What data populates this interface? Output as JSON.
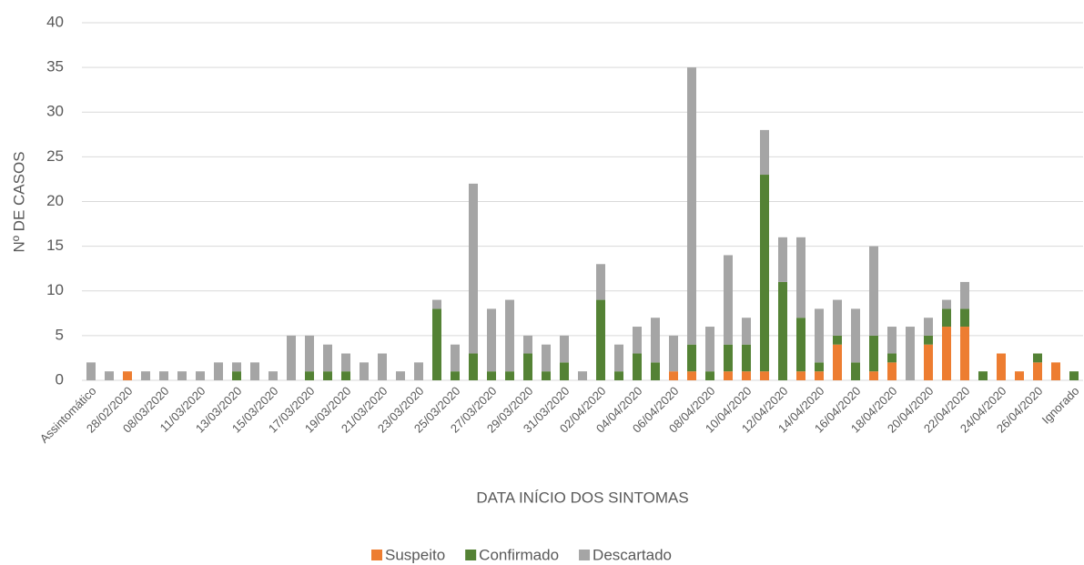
{
  "chart_data": {
    "type": "stacked_bar",
    "x_label": "DATA INÍCIO DOS SINTOMAS",
    "y_label": "Nº DE CASOS",
    "categories": [
      "Assintomático",
      null,
      "28/02/2020",
      null,
      "08/03/2020",
      null,
      "11/03/2020",
      null,
      "13/03/2020",
      null,
      "15/03/2020",
      null,
      "17/03/2020",
      null,
      "19/03/2020",
      null,
      "21/03/2020",
      null,
      "23/03/2020",
      null,
      "25/03/2020",
      null,
      "27/03/2020",
      null,
      "29/03/2020",
      null,
      "31/03/2020",
      null,
      "02/04/2020",
      null,
      "04/04/2020",
      null,
      "06/04/2020",
      null,
      "08/04/2020",
      null,
      "10/04/2020",
      null,
      "12/04/2020",
      null,
      "14/04/2020",
      null,
      "16/04/2020",
      null,
      "18/04/2020",
      null,
      "20/04/2020",
      null,
      "22/04/2020",
      null,
      "24/04/2020",
      null,
      "26/04/2020",
      null,
      "Ignorado"
    ],
    "series": [
      {
        "name": "Suspeito",
        "color": "#ed7d31",
        "values": [
          0,
          0,
          1,
          0,
          0,
          0,
          0,
          0,
          0,
          0,
          0,
          0,
          0,
          0,
          0,
          0,
          0,
          0,
          0,
          0,
          0,
          0,
          0,
          0,
          0,
          0,
          0,
          0,
          0,
          0,
          0,
          0,
          1,
          1,
          0,
          1,
          1,
          1,
          0,
          1,
          1,
          4,
          0,
          1,
          2,
          0,
          4,
          6,
          6,
          0,
          3,
          1,
          2,
          2,
          0
        ]
      },
      {
        "name": "Confirmado",
        "color": "#548235",
        "values": [
          0,
          0,
          0,
          0,
          0,
          0,
          0,
          0,
          1,
          0,
          0,
          0,
          1,
          1,
          1,
          0,
          0,
          0,
          0,
          8,
          1,
          3,
          1,
          1,
          3,
          1,
          2,
          0,
          9,
          1,
          3,
          2,
          0,
          3,
          1,
          3,
          3,
          22,
          11,
          6,
          1,
          1,
          2,
          4,
          1,
          0,
          1,
          2,
          2,
          1,
          0,
          0,
          1,
          0,
          1
        ]
      },
      {
        "name": "Descartado",
        "color": "#a5a5a5",
        "values": [
          2,
          1,
          0,
          1,
          1,
          1,
          1,
          2,
          1,
          2,
          1,
          5,
          4,
          3,
          2,
          2,
          3,
          1,
          2,
          1,
          3,
          19,
          7,
          8,
          2,
          3,
          3,
          1,
          4,
          3,
          3,
          5,
          4,
          31,
          5,
          10,
          3,
          5,
          5,
          9,
          6,
          4,
          6,
          10,
          3,
          6,
          2,
          1,
          3,
          0,
          0,
          0,
          0,
          0,
          0
        ]
      }
    ],
    "ylim": [
      0,
      40
    ],
    "yticks": [
      0,
      5,
      10,
      15,
      20,
      25,
      30,
      35,
      40
    ],
    "grid": true,
    "legend": "bottom"
  }
}
